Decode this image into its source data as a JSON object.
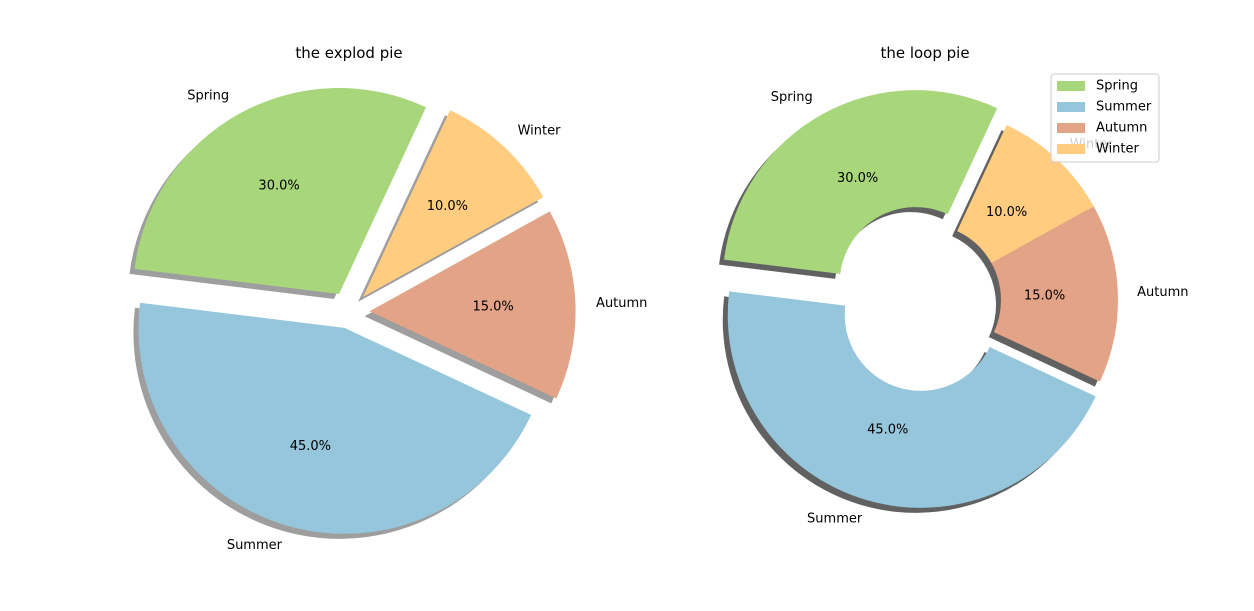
{
  "chart_data": [
    {
      "type": "pie",
      "title": "the explod pie",
      "categories": [
        "Spring",
        "Summer",
        "Autumn",
        "Winter"
      ],
      "values": [
        30,
        45,
        15,
        10
      ],
      "percent_labels": [
        "30.0%",
        "45.0%",
        "15.0%",
        "10.0%"
      ],
      "explode": [
        0.1,
        0.08,
        0.1,
        0.1
      ],
      "shadow": true,
      "colors": [
        "#a8d67b",
        "#95c6dc",
        "#e2a387",
        "#ffcc80"
      ]
    },
    {
      "type": "pie",
      "title": "the loop pie",
      "categories": [
        "Spring",
        "Summer",
        "Autumn",
        "Winter"
      ],
      "values": [
        30,
        45,
        15,
        10
      ],
      "percent_labels": [
        "30.0%",
        "45.0%",
        "15.0%",
        "10.0%"
      ],
      "explode": [
        0.1,
        0.08,
        0,
        0
      ],
      "shadow": true,
      "donut": true,
      "colors": [
        "#a8d67b",
        "#95c6dc",
        "#e2a387",
        "#ffcc80"
      ],
      "legend": {
        "placement": "top-right",
        "entries": [
          "Spring",
          "Summer",
          "Autumn",
          "Winter"
        ]
      }
    }
  ]
}
